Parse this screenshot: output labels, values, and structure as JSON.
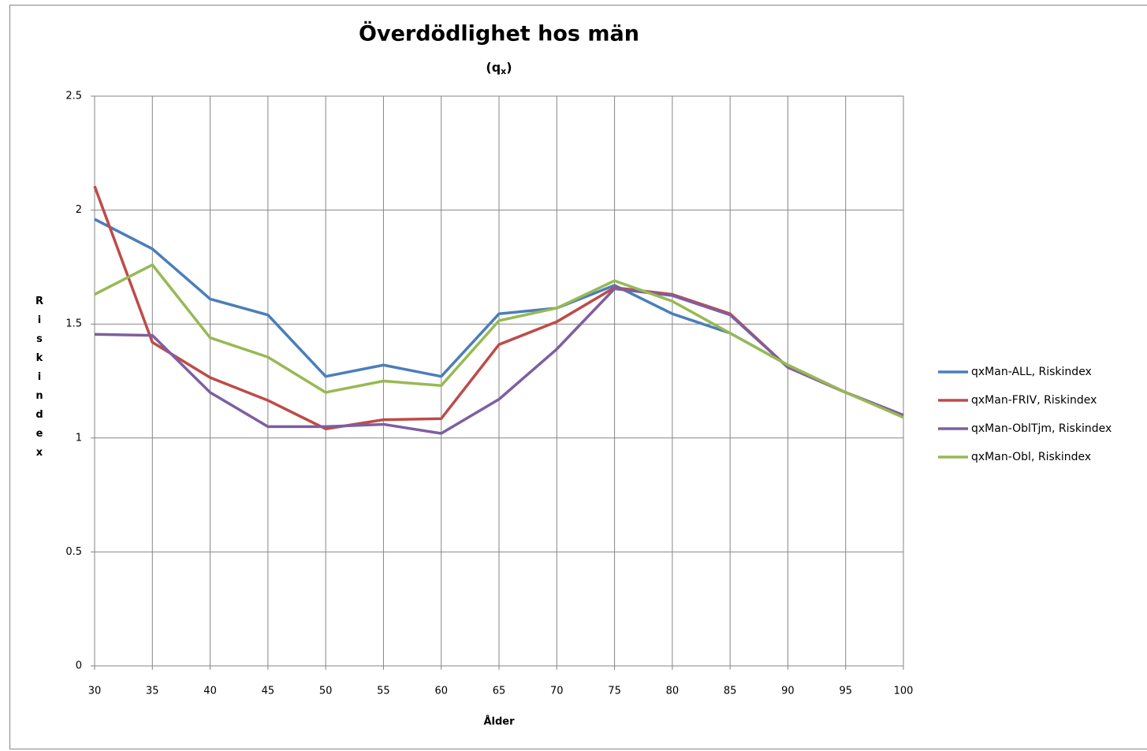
{
  "chart_data": {
    "type": "line",
    "title": "Överdödlighet hos män",
    "subtitle_parts": [
      "(q",
      "x",
      ")"
    ],
    "x_label": "Ålder",
    "y_label": "Riskindex",
    "x": [
      30,
      35,
      40,
      45,
      50,
      55,
      60,
      65,
      70,
      75,
      80,
      85,
      90,
      95,
      100
    ],
    "xlim": [
      30,
      100
    ],
    "xticks": [
      30,
      35,
      40,
      45,
      50,
      55,
      60,
      65,
      70,
      75,
      80,
      85,
      90,
      95,
      100
    ],
    "ylim": [
      0,
      2.5
    ],
    "yticks": [
      0,
      0.5,
      1,
      1.5,
      2,
      2.5
    ],
    "grid": true,
    "legend": "right",
    "series": [
      {
        "name": "qxMan-ALL, Riskindex",
        "color": "#4a7ebb",
        "values": [
          1.96,
          1.83,
          1.61,
          1.54,
          1.27,
          1.32,
          1.27,
          1.545,
          1.57,
          1.67,
          1.545,
          1.46,
          1.32,
          1.2,
          1.1
        ]
      },
      {
        "name": "qxMan-FRIV, Riskindex",
        "color": "#be4b48",
        "values": [
          2.105,
          1.42,
          1.265,
          1.165,
          1.04,
          1.08,
          1.085,
          1.41,
          1.51,
          1.66,
          1.63,
          1.545,
          1.31,
          1.2,
          1.1
        ]
      },
      {
        "name": "qxMan-OblTjm, Riskindex",
        "color": "#7d5fa0",
        "values": [
          1.455,
          1.45,
          1.2,
          1.05,
          1.05,
          1.06,
          1.02,
          1.17,
          1.39,
          1.655,
          1.625,
          1.54,
          1.31,
          1.2,
          1.1
        ]
      },
      {
        "name": "qxMan-Obl, Riskindex",
        "color": "#98b954",
        "values": [
          1.63,
          1.76,
          1.44,
          1.355,
          1.2,
          1.25,
          1.23,
          1.515,
          1.57,
          1.69,
          1.6,
          1.46,
          1.32,
          1.2,
          1.09
        ]
      }
    ]
  }
}
